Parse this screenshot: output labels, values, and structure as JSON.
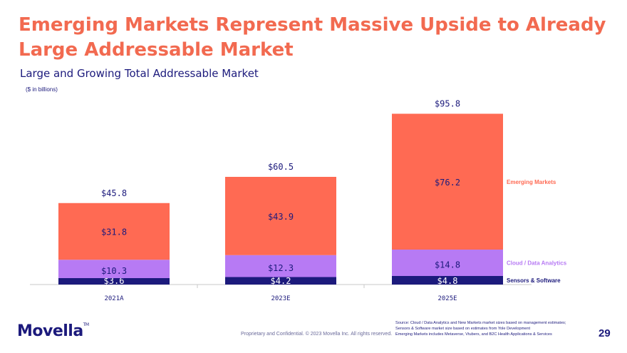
{
  "slide": {
    "title": "Emerging Markets Represent Massive Upside to Already Large Addressable Market",
    "subtitle": "Large and Growing Total Addressable Market",
    "units": "($ in billions)",
    "logo": "Movella",
    "logo_tm": "TM",
    "confidential": "Proprietary and Confidential. © 2023 Movella Inc. All rights reserved.",
    "source_lines": [
      "Source: Cloud / Data Analytics and New Markets market sizes based on management estimates;",
      "Sensors & Software market size based on estimates from Yole Development",
      "Emerging Markets includes Metaverse, Vtubers, and B2C Health Applications & Services"
    ],
    "page_number": "29"
  },
  "colors": {
    "emerging": "#ff6a53",
    "cloud": "#b77af4",
    "sensors": "#1c1a7c",
    "title": "#f26a50",
    "text": "#1c1a7c"
  },
  "chart_data": {
    "type": "bar",
    "stacked": true,
    "title": "Large and Growing Total Addressable Market",
    "ylabel": "($ in billions)",
    "categories": [
      "2021A",
      "2023E",
      "2025E"
    ],
    "series": [
      {
        "name": "Sensors & Software",
        "values": [
          3.6,
          4.2,
          4.8
        ],
        "labels": [
          "$3.6",
          "$4.2",
          "$4.8"
        ]
      },
      {
        "name": "Cloud / Data Analytics",
        "values": [
          10.3,
          12.3,
          14.8
        ],
        "labels": [
          "$10.3",
          "$12.3",
          "$14.8"
        ]
      },
      {
        "name": "Emerging Markets",
        "values": [
          31.8,
          43.9,
          76.2
        ],
        "labels": [
          "$31.8",
          "$43.9",
          "$76.2"
        ]
      }
    ],
    "totals": [
      45.8,
      60.5,
      95.8
    ],
    "total_labels": [
      "$45.8",
      "$60.5",
      "$95.8"
    ],
    "ylim": [
      0,
      100
    ],
    "legend_position": "right"
  }
}
